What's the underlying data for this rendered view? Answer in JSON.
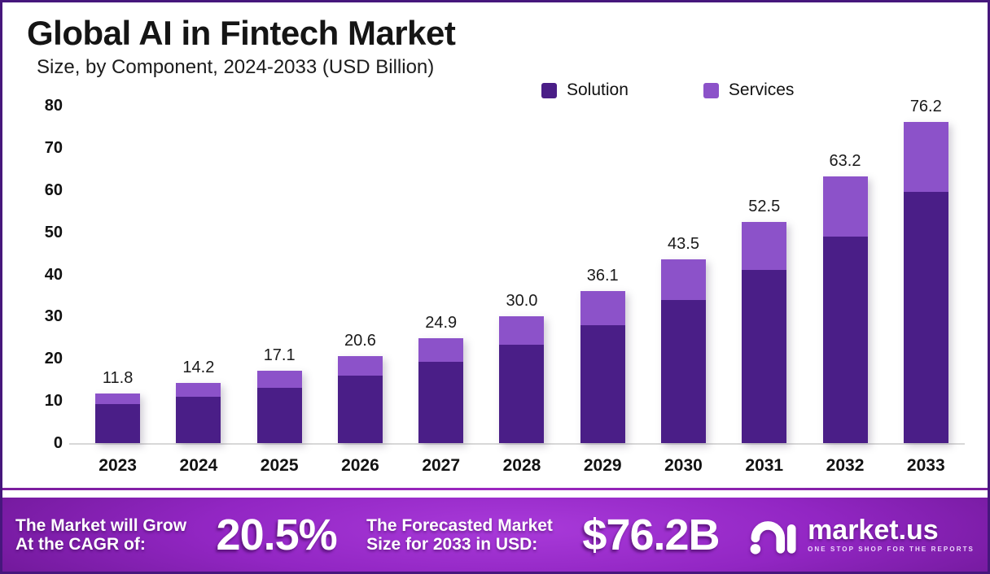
{
  "title": "Global AI in Fintech Market",
  "subtitle": "Size, by Component, 2024-2033 (USD Billion)",
  "legend": [
    {
      "label": "Solution",
      "color": "#4a1e87"
    },
    {
      "label": "Services",
      "color": "#8c52c9"
    }
  ],
  "chart_data": {
    "type": "bar",
    "stacked": true,
    "title": "Global AI in Fintech Market Size, by Component, 2024-2033 (USD Billion)",
    "categories": [
      "2023",
      "2024",
      "2025",
      "2026",
      "2027",
      "2028",
      "2029",
      "2030",
      "2031",
      "2032",
      "2033"
    ],
    "series": [
      {
        "name": "Solution",
        "color": "#4a1e87",
        "values": [
          9.2,
          11.0,
          13.2,
          16.0,
          19.3,
          23.3,
          28.0,
          34.0,
          41.0,
          49.0,
          59.5
        ]
      },
      {
        "name": "Services",
        "color": "#8c52c9",
        "values": [
          2.6,
          3.2,
          3.9,
          4.6,
          5.6,
          6.7,
          8.1,
          9.5,
          11.5,
          14.2,
          16.7
        ]
      }
    ],
    "totals": [
      11.8,
      14.2,
      17.1,
      20.6,
      24.9,
      30.0,
      36.1,
      43.5,
      52.5,
      63.2,
      76.2
    ],
    "total_labels": [
      "11.8",
      "14.2",
      "17.1",
      "20.6",
      "24.9",
      "30.0",
      "36.1",
      "43.5",
      "52.5",
      "63.2",
      "76.2"
    ],
    "xlabel": "",
    "ylabel": "",
    "ylim": [
      0,
      80
    ],
    "yticks": [
      0,
      10,
      20,
      30,
      40,
      50,
      60,
      70,
      80
    ],
    "grid": false,
    "legend_position": "top-right"
  },
  "banner": {
    "cagr_label_line1": "The Market will Grow",
    "cagr_label_line2": "At the CAGR of:",
    "cagr_value": "20.5%",
    "forecast_label_line1": "The Forecasted Market",
    "forecast_label_line2": "Size for 2033 in USD:",
    "forecast_value": "$76.2B",
    "logo_text": "market.us",
    "logo_tagline": "ONE STOP SHOP FOR THE REPORTS"
  },
  "colors": {
    "solution": "#4a1e87",
    "services": "#8c52c9",
    "frame_border": "#46177c",
    "baseline": "#d8d8d8",
    "banner_center": "#a93ada",
    "banner_edge": "#5e1182"
  }
}
